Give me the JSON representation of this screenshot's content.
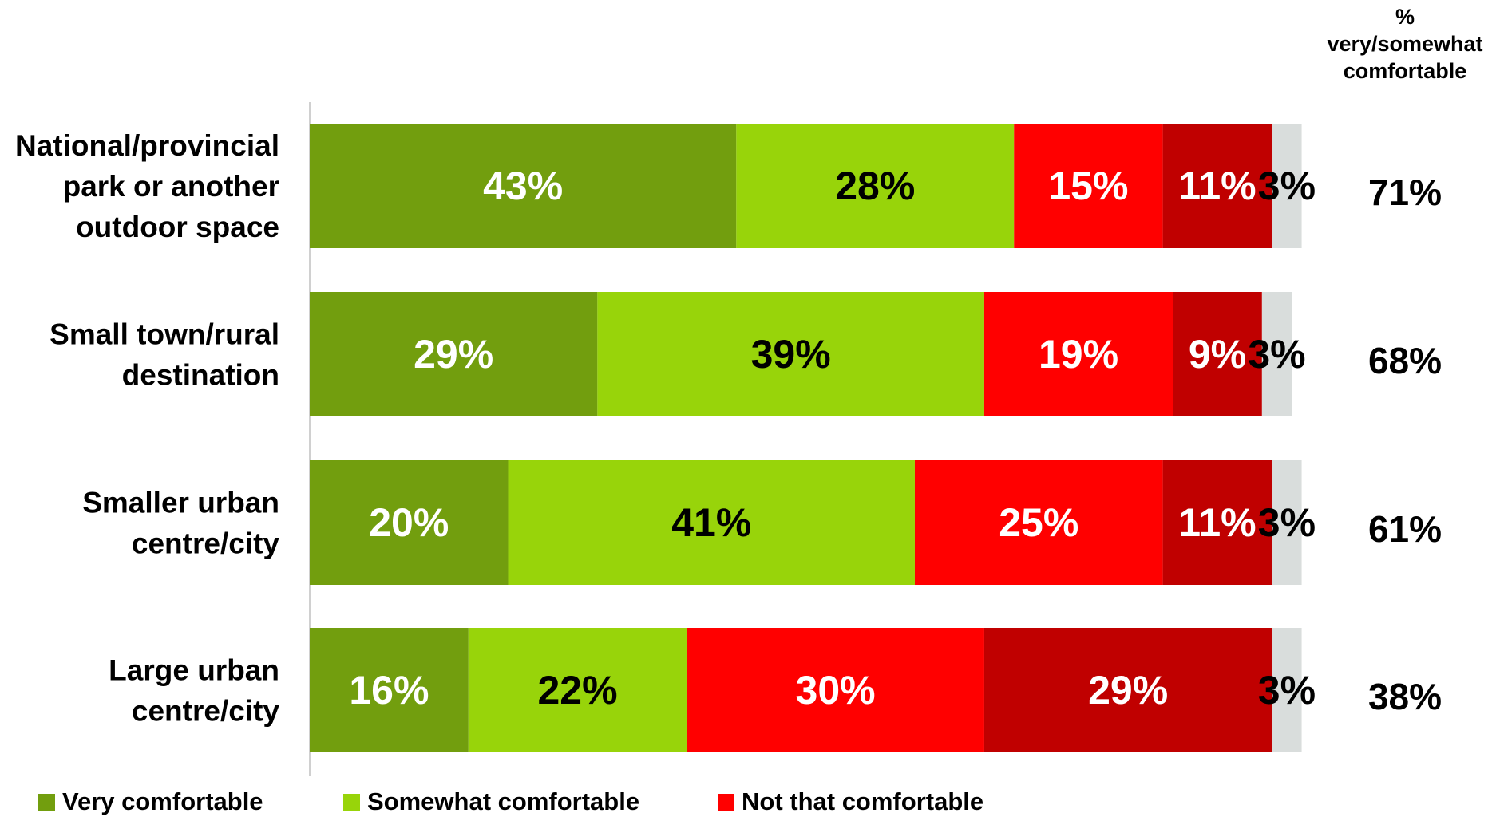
{
  "chart_data": {
    "type": "bar",
    "orientation": "horizontal",
    "stacked": true,
    "categories": [
      "National/provincial park or another outdoor space",
      "Small town/rural destination",
      "Smaller urban centre/city",
      "Large urban centre/city"
    ],
    "category_lines": [
      [
        "National/provincial",
        "park or another",
        "outdoor space"
      ],
      [
        "Small town/rural",
        "destination"
      ],
      [
        "Smaller urban",
        "centre/city"
      ],
      [
        "Large urban",
        "centre/city"
      ]
    ],
    "series": [
      {
        "name": "Very comfortable",
        "color": "#729E0E",
        "label_color": "#FFFFFF",
        "in_legend": true,
        "values": [
          43,
          29,
          20,
          16
        ]
      },
      {
        "name": "Somewhat comfortable",
        "color": "#98D40A",
        "label_color": "#000000",
        "in_legend": true,
        "values": [
          28,
          39,
          41,
          22
        ]
      },
      {
        "name": "Not that comfortable",
        "color": "#FF0000",
        "label_color": "#FFFFFF",
        "in_legend": true,
        "values": [
          15,
          19,
          25,
          30
        ]
      },
      {
        "name": "",
        "color": "#C00000",
        "label_color": "#FFFFFF",
        "in_legend": false,
        "values": [
          11,
          9,
          11,
          29
        ]
      },
      {
        "name": "",
        "color": "#D9DDDC",
        "label_color": "#000000",
        "in_legend": false,
        "values": [
          3,
          3,
          3,
          3
        ]
      }
    ],
    "value_suffix": "%",
    "totals": {
      "header": [
        "%",
        "very/somewhat",
        "comfortable"
      ],
      "values": [
        "71%",
        "68%",
        "61%",
        "38%"
      ]
    },
    "legend": {
      "placement": "bottom-left"
    },
    "grid": false,
    "xlim": [
      0,
      101
    ]
  }
}
